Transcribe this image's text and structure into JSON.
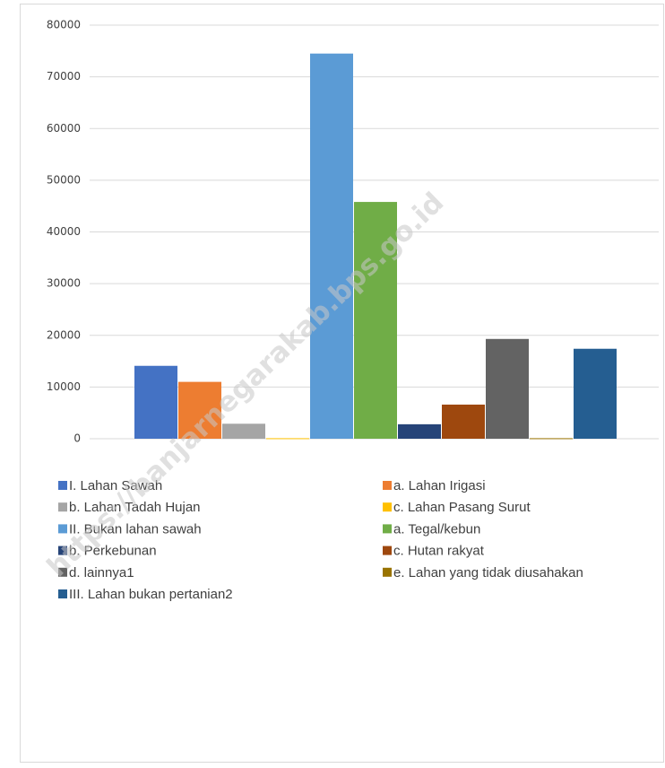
{
  "chart_data": {
    "type": "bar",
    "categories": [
      null
    ],
    "series": [
      {
        "name": "I. Lahan Sawah",
        "color": "#4472c4",
        "values": [
          14100
        ]
      },
      {
        "name": "a. Lahan Irigasi",
        "color": "#ed7d31",
        "values": [
          11000
        ]
      },
      {
        "name": "b. Lahan Tadah Hujan",
        "color": "#a5a5a5",
        "values": [
          2900
        ]
      },
      {
        "name": "c. Lahan Pasang Surut",
        "color": "#ffc000",
        "values": [
          100
        ]
      },
      {
        "name": "II. Bukan lahan sawah",
        "color": "#5b9bd5",
        "values": [
          74500
        ]
      },
      {
        "name": "a. Tegal/kebun",
        "color": "#70ad47",
        "values": [
          45800
        ]
      },
      {
        "name": "b. Perkebunan",
        "color": "#264478",
        "values": [
          2800
        ]
      },
      {
        "name": "c. Hutan rakyat",
        "color": "#9e480e",
        "values": [
          6600
        ]
      },
      {
        "name": "d. lainnya1",
        "color": "#636363",
        "values": [
          19300
        ]
      },
      {
        "name": "e. Lahan yang tidak diusahakan",
        "color": "#997300",
        "values": [
          100
        ]
      },
      {
        "name": "III. Lahan bukan pertanian2",
        "color": "#255e91",
        "values": [
          17400
        ]
      }
    ],
    "ylim": [
      0,
      80000
    ],
    "yticks": [
      0,
      10000,
      20000,
      30000,
      40000,
      50000,
      60000,
      70000,
      80000
    ],
    "grid": true,
    "legend": "bottom",
    "watermark": "https://banjarnegarakab.bps.go.id"
  }
}
